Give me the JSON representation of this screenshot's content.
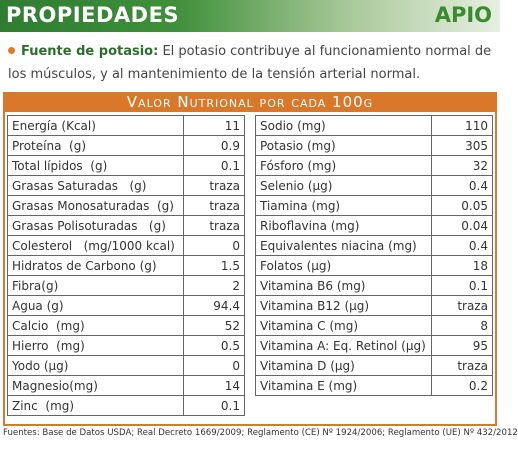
{
  "header": {
    "title": "PROPIEDADES",
    "product": "APIO"
  },
  "note": {
    "label": "Fuente de potasio:",
    "text": "El potasio contribuye al funcionamiento normal de los músculos, y al mantenimiento de la tensión arterial normal."
  },
  "table": {
    "title": "Valor Nutrional por cada 100g",
    "left": [
      [
        "Energía (Kcal)",
        "11"
      ],
      [
        "Proteína  (g)",
        "0.9"
      ],
      [
        "Total lípidos  (g)",
        "0.1"
      ],
      [
        "Grasas Saturadas   (g)",
        "traza"
      ],
      [
        "Grasas Monosaturadas  (g)",
        "traza"
      ],
      [
        "Grasas Polisoturadas   (g)",
        "traza"
      ],
      [
        "Colesterol   (mg/1000 kcal)",
        "0"
      ],
      [
        "Hidratos de Carbono (g)",
        "1.5"
      ],
      [
        "Fibra(g)",
        "2"
      ],
      [
        "Agua (g)",
        "94.4"
      ],
      [
        "Calcio  (mg)",
        "52"
      ],
      [
        "Hierro  (mg)",
        "0.5"
      ],
      [
        "Yodo (µg)",
        "0"
      ],
      [
        "Magnesio(mg)",
        "14"
      ],
      [
        "Zinc  (mg)",
        "0.1"
      ]
    ],
    "right": [
      [
        "Sodio (mg)",
        "110"
      ],
      [
        "Potasio (mg)",
        "305"
      ],
      [
        "Fósforo (mg)",
        "32"
      ],
      [
        "Selenio (µg)",
        "0.4"
      ],
      [
        "Tiamina (mg)",
        "0.05"
      ],
      [
        "Riboflavina (mg)",
        "0.04"
      ],
      [
        "Equivalentes niacina (mg)",
        "0.4"
      ],
      [
        "Folatos (µg)",
        "18"
      ],
      [
        "Vitamina B6 (mg)",
        "0.1"
      ],
      [
        "Vitamina B12 (µg)",
        "traza"
      ],
      [
        "Vitamina C (mg)",
        "8"
      ],
      [
        "Vitamina A: Eq. Retinol (µg)",
        "95"
      ],
      [
        "Vitamina D (µg)",
        "traza"
      ],
      [
        "Vitamina E (mg)",
        "0.2"
      ]
    ]
  },
  "footer": "Fuentes: Base de Datos USDA; Real Decreto 1669/2009; Reglamento (CE) Nº 1924/2006; Reglamento (UE) Nº 432/2012"
}
